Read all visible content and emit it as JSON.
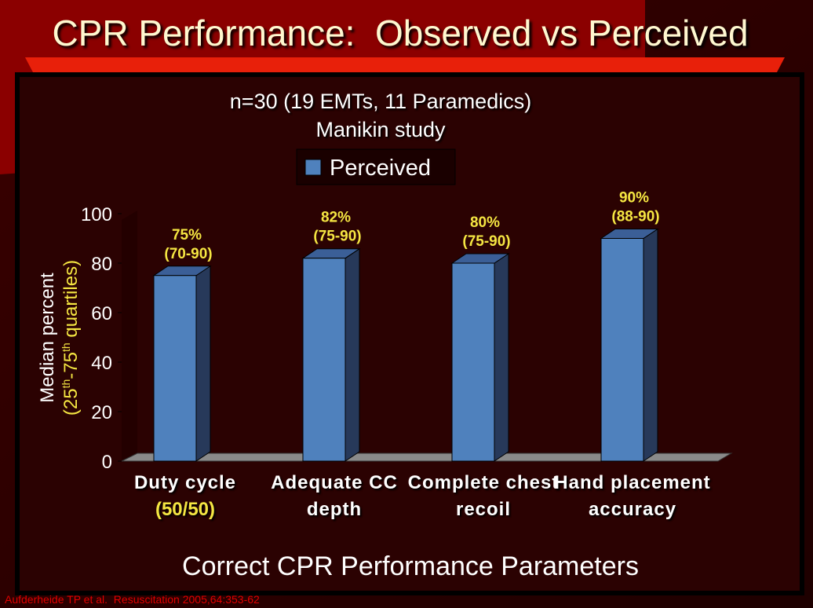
{
  "chart_data": {
    "type": "bar",
    "title": "CPR Performance:  Observed vs Perceived",
    "subtitle": [
      "n=30 (19 EMTs, 11 Paramedics)",
      "Manikin study"
    ],
    "categories": [
      "Duty cycle",
      "Adequate CC depth",
      "Complete chest recoil",
      "Hand placement accuracy"
    ],
    "category_notes": [
      "(50/50)",
      null,
      null,
      null
    ],
    "series": [
      {
        "name": "Perceived",
        "color": "#4f81bd",
        "values": [
          75,
          82,
          80,
          90
        ],
        "value_labels": [
          "75%",
          "82%",
          "80%",
          "90%"
        ],
        "range_labels": [
          "(70-90)",
          "(75-90)",
          "(75-90)",
          "(88-90)"
        ]
      }
    ],
    "ylim": [
      0,
      100
    ],
    "yticks": [
      0,
      20,
      40,
      60,
      80,
      100
    ],
    "ylabel": "Median percent",
    "ylabel_note_parts": [
      "(25",
      "th",
      "-75",
      "th",
      " quartiles)"
    ],
    "xlabel": "Correct CPR Performance Parameters",
    "citation": "Aufderheide TP et al.  Resuscitation 2005,64:353-62"
  }
}
